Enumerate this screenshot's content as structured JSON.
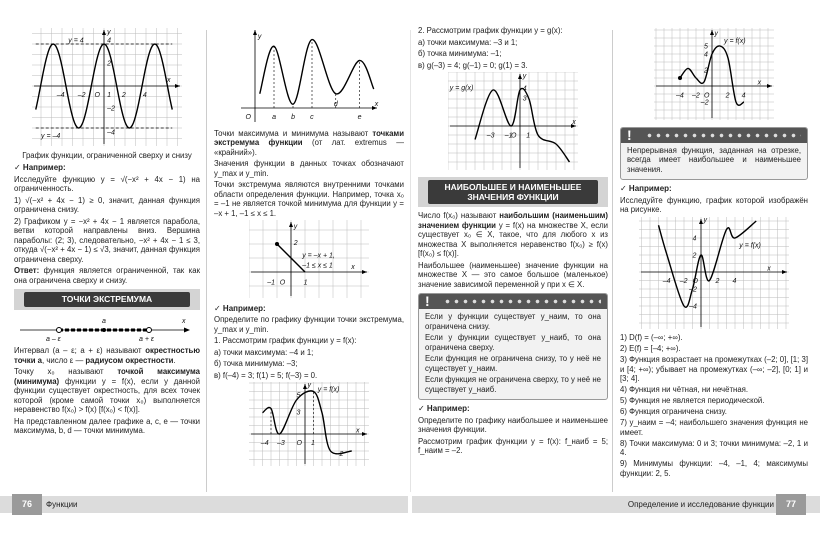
{
  "columns": [
    {
      "blocks": [
        {
          "type": "graph",
          "labels": [
            "y",
            "y = 4",
            "4",
            "2",
            "x",
            "–4",
            "–2",
            "O",
            "1",
            "2",
            "4",
            "–2",
            "y = –4",
            "–4"
          ]
        },
        {
          "type": "caption",
          "text": "График функции, ограниченной сверху и снизу"
        },
        {
          "type": "example",
          "text": "✓ Например:"
        },
        {
          "type": "p",
          "text": [
            "Исследуйте функцию y = √(−x² + 4x − 1) на ограниченность."
          ]
        },
        {
          "type": "p",
          "text": [
            "1) √(−x² + 4x − 1) ≥ 0, значит, данная функция ограничена снизу."
          ]
        },
        {
          "type": "p",
          "text": [
            "2) Графиком y = −x² + 4x − 1 является парабола, ветви которой направлены вниз. Вершина параболы: (2; 3), следовательно, −x² + 4x − 1 ≤ 3, откуда √(−x² + 4x − 1) ≤ √3, значит, данная функция ограничена сверху."
          ]
        },
        {
          "type": "p",
          "text": [
            "",
            "Ответ:",
            " функция является ограниченной, так как она ограничена сверху и снизу."
          ]
        },
        {
          "type": "section",
          "title": "ТОЧКИ ЭКСТРЕМУМА"
        },
        {
          "type": "numline",
          "labels": [
            "a",
            "a – ε",
            "a + ε",
            "x"
          ]
        },
        {
          "type": "p",
          "text": [
            "Интервал (a – ε; a + ε) называют ",
            "окрестностью точки a",
            ", число ε — ",
            "радиусом окрестности",
            "."
          ]
        },
        {
          "type": "p",
          "text": [
            "Точку x₀ называют ",
            "точкой максимума (минимума)",
            " функции y = f(x), если у данной функции существует окрестность, для всех точек которой (кроме самой точки x₀) выполняется неравенство f(x₀) > f(x) [f(x₀) < f(x)]."
          ]
        },
        {
          "type": "p",
          "text": [
            "На представленном далее графике a, c, e — точки максимума, b, d — точки минимума."
          ]
        }
      ]
    },
    {
      "blocks": [
        {
          "type": "graph",
          "labels": [
            "y",
            "x",
            "O",
            "a",
            "b",
            "c",
            "d",
            "e"
          ]
        },
        {
          "type": "p",
          "text": [
            "Точки максимума и минимума называют ",
            "точками экстремума функции",
            " (от лат. extremus — «крайний»)."
          ]
        },
        {
          "type": "p",
          "text": [
            "Значения функции в данных точках обозначают y_max и y_min."
          ]
        },
        {
          "type": "p",
          "text": [
            "Точки экстремума являются внутренними точками области определения функции. Например, точка x₀ = –1 не является точкой минимума для функции y = –x + 1, –1 ≤ x ≤ 1."
          ]
        },
        {
          "type": "graph",
          "labels": [
            "y",
            "2",
            "y = –x + 1,",
            "–1 ≤ x ≤ 1",
            "–1",
            "O",
            "1",
            "x"
          ]
        },
        {
          "type": "example",
          "text": "✓ Например:"
        },
        {
          "type": "p",
          "text": [
            "Определите по графику функции точки экстремума, y_max и y_min."
          ]
        },
        {
          "type": "p",
          "text": [
            "1. Рассмотрим график функции y = f(x):"
          ]
        },
        {
          "type": "p",
          "text": [
            "а) точки максимума: –4 и 1;"
          ]
        },
        {
          "type": "p",
          "text": [
            "б) точка минимума: –3;"
          ]
        },
        {
          "type": "p",
          "text": [
            "в) f(–4) = 3; f(1) = 5; f(–3) = 0."
          ]
        },
        {
          "type": "graph",
          "labels": [
            "y",
            "5",
            "y = f(x)",
            "3",
            "–4",
            "–3",
            "O",
            "1",
            "x",
            "–2"
          ]
        }
      ]
    },
    {
      "blocks": [
        {
          "type": "p",
          "text": [
            "2. Рассмотрим график функции y = g(x):"
          ]
        },
        {
          "type": "p",
          "text": [
            "а) точки максимума: –3 и 1;"
          ]
        },
        {
          "type": "p",
          "text": [
            "б) точка минимума: –1;"
          ]
        },
        {
          "type": "p",
          "text": [
            "в) g(–3) = 4; g(–1) = 0; g(1) = 3."
          ]
        },
        {
          "type": "graph",
          "labels": [
            "y = g(x)",
            "y",
            "4",
            "3",
            "–3",
            "–1",
            "O",
            "1",
            "x"
          ]
        },
        {
          "type": "section",
          "title": "НАИБОЛЬШЕЕ И НАИМЕНЬШЕЕ ЗНАЧЕНИЯ ФУНКЦИИ"
        },
        {
          "type": "p",
          "text": [
            "Число f(x₀) называют ",
            "наибольшим (наименьшим) значением функции",
            " y = f(x) на множестве X, если существует x₀ ∈ X, такое, что для любого x из множества X выполняется неравенство f(x₀) ≥ f(x) [f(x₀) ≤ f(x)]."
          ]
        },
        {
          "type": "p",
          "text": [
            "Наибольшее (наименьшее) значение функции на множестве X — это самое большое (маленькое) значение зависимой переменной y при x ∈ X."
          ]
        },
        {
          "type": "note",
          "mark": "!",
          "items": [
            "Если у функции существует y_наим, то она ограничена снизу.",
            "Если у функции существует y_наиб, то она ограничена сверху.",
            "Если функция не ограничена снизу, то у неё не существует y_наим.",
            "Если функция не ограничена сверху, то у неё не существует y_наиб."
          ]
        },
        {
          "type": "example",
          "text": "✓ Например:"
        },
        {
          "type": "p",
          "text": [
            "Определите по графику наибольшее и наименьшее значения функции."
          ]
        },
        {
          "type": "p",
          "text": [
            "Рассмотрим график функции y = f(x): f_наиб = 5; f_наим = –2."
          ]
        }
      ]
    },
    {
      "blocks": [
        {
          "type": "graph",
          "labels": [
            "y",
            "5",
            "y = f(x)",
            "4",
            "2",
            "–4",
            "–2",
            "O",
            "2",
            "4",
            "x",
            "–2"
          ]
        },
        {
          "type": "note",
          "mark": "!",
          "items": [
            "Непрерывная функция, заданная на отрезке, всегда имеет наибольшее и наименьшее значения."
          ]
        },
        {
          "type": "example",
          "text": "✓ Например:"
        },
        {
          "type": "p",
          "text": [
            "Исследуйте функцию, график которой изображён на рисунке."
          ]
        },
        {
          "type": "graph",
          "labels": [
            "y",
            "y = f(x)",
            "4",
            "2",
            "–4",
            "–2",
            "O",
            "2",
            "4",
            "x",
            "–2",
            "–4"
          ]
        },
        {
          "type": "list",
          "items": [
            "1) D(f) = (–∞; +∞).",
            "2) E(f) = [–4; +∞).",
            "3) Функция возрастает на промежутках (–2; 0], [1; 3] и [4; +∞); убывает на промежутках (–∞; –2], [0; 1] и [3; 4].",
            "4) Функция ни чётная, ни нечётная.",
            "5) Функция не является периодической.",
            "6) Функция ограничена снизу.",
            "7) y_наим = –4; наибольшего значения функция не имеет.",
            "8) Точки максимума: 0 и 3; точки минимума: –2, 1 и 4.",
            "9) Минимумы функции: –4, –1, 4; максимумы функции: 2, 5."
          ]
        }
      ]
    }
  ],
  "footer": {
    "left_page_number": "76",
    "left_title": "Функции",
    "right_title": "Определение и исследование функции",
    "right_page_number": "77"
  }
}
